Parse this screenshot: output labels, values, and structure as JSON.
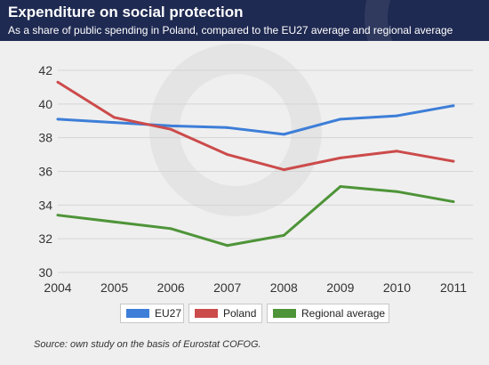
{
  "header": {
    "title": "Expenditure on social protection",
    "subtitle": "As a share of public spending in Poland, compared to the EU27 average and regional average"
  },
  "source": "Source: own study on the basis of Eurostat COFOG.",
  "chart_data": {
    "type": "line",
    "title": "Expenditure on social protection",
    "subtitle": "As a share of public spending in Poland, compared to the EU27 average and regional average",
    "xlabel": "",
    "ylabel": "",
    "x": [
      "2004",
      "2005",
      "2006",
      "2007",
      "2008",
      "2009",
      "2010",
      "2011"
    ],
    "ylim": [
      30,
      42
    ],
    "yticks": [
      30,
      32,
      34,
      36,
      38,
      40,
      42
    ],
    "grid": true,
    "legend_position": "bottom",
    "series": [
      {
        "name": "EU27",
        "color": "#3d7ed8",
        "values": [
          39.1,
          38.9,
          38.7,
          38.6,
          38.2,
          39.1,
          39.3,
          39.9
        ]
      },
      {
        "name": "Poland",
        "color": "#cc4b4b",
        "values": [
          41.3,
          39.2,
          38.5,
          37.0,
          36.1,
          36.8,
          37.2,
          36.6
        ]
      },
      {
        "name": "Regional average",
        "color": "#4e9438",
        "values": [
          33.4,
          33.0,
          32.6,
          31.6,
          32.2,
          35.1,
          34.8,
          34.2
        ]
      }
    ]
  }
}
